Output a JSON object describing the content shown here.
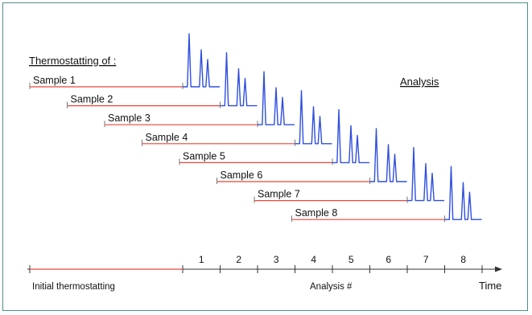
{
  "heading": "Thermostatting of :",
  "analysis_label": "Analysis",
  "samples": [
    {
      "label": "Sample 1",
      "analysis_number": "1"
    },
    {
      "label": "Sample 2",
      "analysis_number": "2"
    },
    {
      "label": "Sample 3",
      "analysis_number": "3"
    },
    {
      "label": "Sample 4",
      "analysis_number": "4"
    },
    {
      "label": "Sample 5",
      "analysis_number": "5"
    },
    {
      "label": "Sample 6",
      "analysis_number": "6"
    },
    {
      "label": "Sample 7",
      "analysis_number": "7"
    },
    {
      "label": "Sample 8",
      "analysis_number": "8"
    }
  ],
  "axis": {
    "initial_label": "Initial thermostatting",
    "analysis_number_label": "Analysis #",
    "time_label": "Time"
  },
  "colors": {
    "thermostat_line": "#e8463c",
    "heading_text": "#c0281e",
    "chromatogram": "#2f4fe0",
    "analysis_text": "#2f4fe0",
    "axis": "#333333",
    "frame": "#4f8f8a"
  }
}
